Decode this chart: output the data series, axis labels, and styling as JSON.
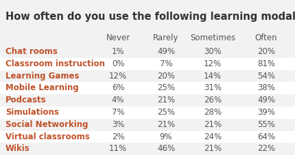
{
  "title": "How often do you use the following learning modalities?",
  "columns": [
    "Never",
    "Rarely",
    "Sometimes",
    "Often"
  ],
  "rows": [
    {
      "label": "Chat rooms",
      "values": [
        "1%",
        "49%",
        "30%",
        "20%"
      ]
    },
    {
      "label": "Classroom instruction",
      "values": [
        "0%",
        "7%",
        "12%",
        "81%"
      ]
    },
    {
      "label": "Learning Games",
      "values": [
        "12%",
        "20%",
        "14%",
        "54%"
      ]
    },
    {
      "label": "Mobile Learning",
      "values": [
        "6%",
        "25%",
        "31%",
        "38%"
      ]
    },
    {
      "label": "Podcasts",
      "values": [
        "4%",
        "21%",
        "26%",
        "49%"
      ]
    },
    {
      "label": "Simulations",
      "values": [
        "7%",
        "25%",
        "28%",
        "39%"
      ]
    },
    {
      "label": "Social Networking",
      "values": [
        "3%",
        "21%",
        "21%",
        "55%"
      ]
    },
    {
      "label": "Virtual classrooms",
      "values": [
        "2%",
        "9%",
        "24%",
        "64%"
      ]
    },
    {
      "label": "Wikis",
      "values": [
        "11%",
        "46%",
        "21%",
        "22%"
      ]
    }
  ],
  "bg_color": "#f2f2f2",
  "row_even_color": "#f2f2f2",
  "row_odd_color": "#ffffff",
  "title_color": "#333333",
  "header_color": "#555555",
  "label_color": "#c0522a",
  "value_color": "#555555",
  "title_fontsize": 10.5,
  "header_fontsize": 8.5,
  "label_fontsize": 8.5,
  "value_fontsize": 8.5
}
